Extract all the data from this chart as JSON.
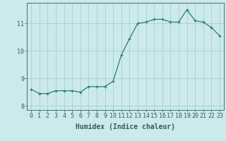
{
  "x": [
    0,
    1,
    2,
    3,
    4,
    5,
    6,
    7,
    8,
    9,
    10,
    11,
    12,
    13,
    14,
    15,
    16,
    17,
    18,
    19,
    20,
    21,
    22,
    23
  ],
  "y": [
    8.6,
    8.45,
    8.45,
    8.55,
    8.55,
    8.55,
    8.5,
    8.7,
    8.7,
    8.7,
    8.9,
    9.85,
    10.45,
    11.0,
    11.05,
    11.15,
    11.15,
    11.05,
    11.05,
    11.5,
    11.1,
    11.05,
    10.85,
    10.55
  ],
  "line_color": "#2e7d72",
  "marker": "+",
  "bg_color": "#cceaea",
  "grid_color": "#aad4d4",
  "xlabel": "Humidex (Indice chaleur)",
  "ylim": [
    7.85,
    11.75
  ],
  "xlim": [
    -0.5,
    23.5
  ],
  "yticks": [
    8,
    9,
    10,
    11
  ],
  "xticks": [
    0,
    1,
    2,
    3,
    4,
    5,
    6,
    7,
    8,
    9,
    10,
    11,
    12,
    13,
    14,
    15,
    16,
    17,
    18,
    19,
    20,
    21,
    22,
    23
  ],
  "font_color": "#2e5f5a",
  "tick_fontsize": 6,
  "label_fontsize": 7
}
